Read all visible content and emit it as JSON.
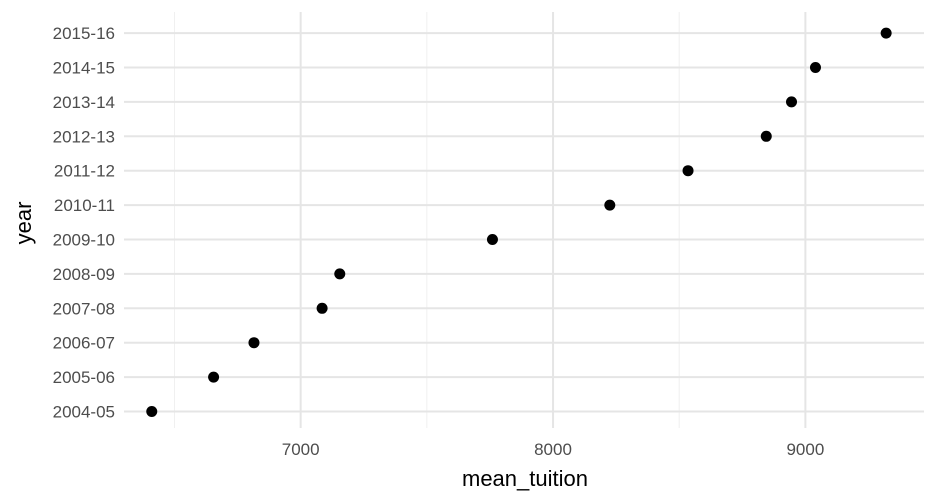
{
  "chart_data": {
    "type": "scatter",
    "title": "",
    "xlabel": "mean_tuition",
    "ylabel": "year",
    "xlim": [
      6300,
      9470
    ],
    "x_ticks": [
      7000,
      8000,
      9000
    ],
    "x_tick_labels": [
      "7000",
      "8000",
      "9000"
    ],
    "x_minor_ticks": [
      6500,
      7500,
      8500
    ],
    "categories": [
      "2004-05",
      "2005-06",
      "2006-07",
      "2007-08",
      "2008-09",
      "2009-10",
      "2010-11",
      "2011-12",
      "2012-13",
      "2013-14",
      "2014-15",
      "2015-16"
    ],
    "points": [
      {
        "year": "2004-05",
        "mean_tuition": 6410
      },
      {
        "year": "2005-06",
        "mean_tuition": 6655
      },
      {
        "year": "2006-07",
        "mean_tuition": 6815
      },
      {
        "year": "2007-08",
        "mean_tuition": 7085
      },
      {
        "year": "2008-09",
        "mean_tuition": 7155
      },
      {
        "year": "2009-10",
        "mean_tuition": 7760
      },
      {
        "year": "2010-11",
        "mean_tuition": 8225
      },
      {
        "year": "2011-12",
        "mean_tuition": 8535
      },
      {
        "year": "2012-13",
        "mean_tuition": 8845
      },
      {
        "year": "2013-14",
        "mean_tuition": 8945
      },
      {
        "year": "2014-15",
        "mean_tuition": 9040
      },
      {
        "year": "2015-16",
        "mean_tuition": 9320
      }
    ],
    "grid": true,
    "legend": "none",
    "colors": {
      "point": "#000000",
      "grid_major": "#e5e5e5",
      "grid_minor": "#f0f0f0",
      "tick_text": "#4d4d4d",
      "axis_title": "#000000"
    }
  }
}
